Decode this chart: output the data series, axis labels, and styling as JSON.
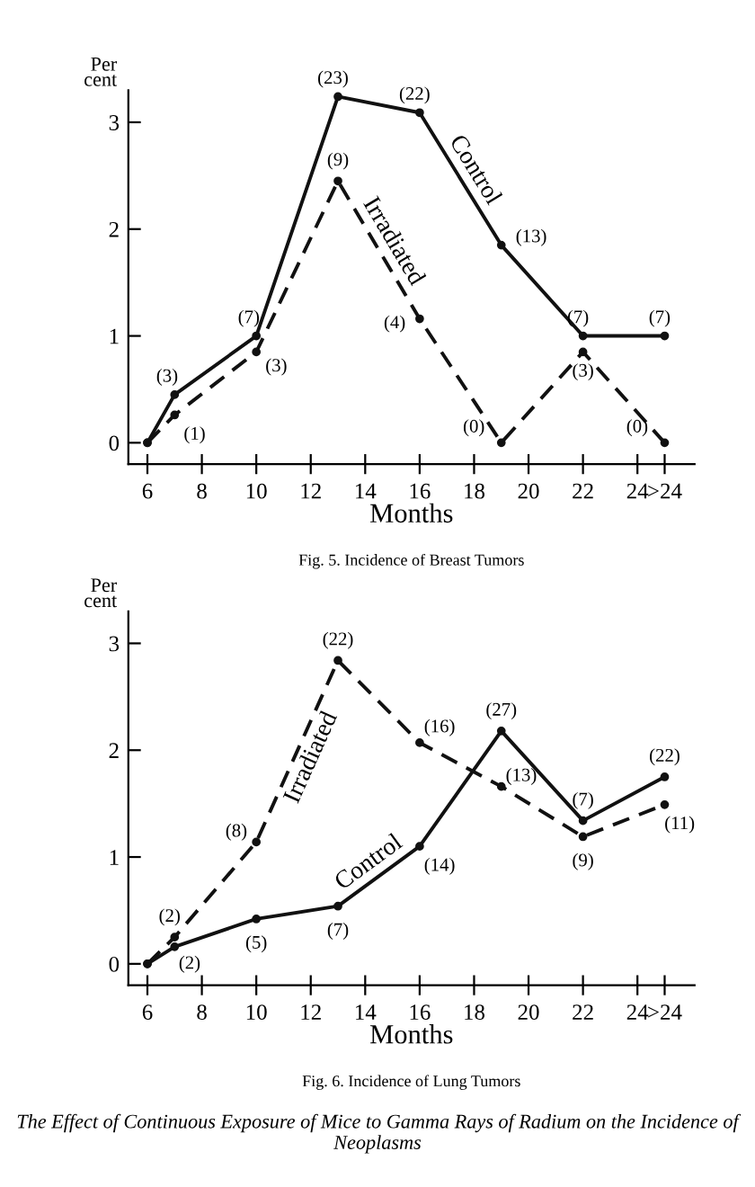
{
  "chart_data": [
    {
      "type": "line",
      "title": "Fig. 5. Incidence of Breast Tumors",
      "xlabel": "Months",
      "ylabel": "Per cent",
      "xlim": [
        5.3,
        26.1
      ],
      "ylim": [
        -0.2,
        3.3
      ],
      "xticks": [
        6,
        8,
        10,
        12,
        14,
        16,
        18,
        20,
        22,
        24,
        {
          "value": 25,
          "label": ">24"
        }
      ],
      "yticks": [
        0,
        1,
        2,
        3
      ],
      "grid": false,
      "legend": false,
      "marker": "circle",
      "x": [
        6,
        7,
        10,
        13,
        16,
        19,
        22,
        25
      ],
      "series": [
        {
          "name": "Control",
          "color": "#111111",
          "line_style": "solid",
          "values": [
            0,
            0.45,
            1.0,
            3.24,
            3.09,
            1.85,
            1.0,
            1.0
          ]
        },
        {
          "name": "Irradiated",
          "color": "#111111",
          "line_style": "dashed",
          "values": [
            0,
            0.26,
            0.85,
            2.45,
            1.16,
            0,
            0.85,
            0
          ]
        }
      ],
      "annotations": [
        {
          "text": "(3)",
          "x": 7,
          "y": 0.45
        },
        {
          "text": "(7)",
          "x": 10,
          "y": 1.0
        },
        {
          "text": "(23)",
          "x": 13,
          "y": 3.24
        },
        {
          "text": "(22)",
          "x": 16,
          "y": 3.09
        },
        {
          "text": "(13)",
          "x": 19,
          "y": 1.85
        },
        {
          "text": "(7)",
          "x": 22,
          "y": 1.0
        },
        {
          "text": "(7)",
          "x": 25,
          "y": 1.0
        },
        {
          "text": "(1)",
          "x": 7,
          "y": 0.26
        },
        {
          "text": "(3)",
          "x": 10,
          "y": 0.85
        },
        {
          "text": "(9)",
          "x": 13,
          "y": 2.45
        },
        {
          "text": "(4)",
          "x": 16,
          "y": 1.16
        },
        {
          "text": "(0)",
          "x": 19,
          "y": 0
        },
        {
          "text": "(3)",
          "x": 22,
          "y": 0.85
        },
        {
          "text": "(0)",
          "x": 25,
          "y": 0
        }
      ]
    },
    {
      "type": "line",
      "title": "Fig. 6. Incidence of Lung Tumors",
      "xlabel": "Months",
      "ylabel": "Per cent",
      "xlim": [
        5.3,
        26.1
      ],
      "ylim": [
        -0.2,
        3.3
      ],
      "xticks": [
        6,
        8,
        10,
        12,
        14,
        16,
        18,
        20,
        22,
        24,
        {
          "value": 25,
          "label": ">24"
        }
      ],
      "yticks": [
        0,
        1,
        2,
        3
      ],
      "grid": false,
      "legend": false,
      "marker": "circle",
      "x": [
        6,
        7,
        10,
        13,
        16,
        19,
        22,
        25
      ],
      "series": [
        {
          "name": "Control",
          "color": "#111111",
          "line_style": "solid",
          "values": [
            0,
            0.16,
            0.42,
            0.54,
            1.1,
            2.18,
            1.34,
            1.75
          ]
        },
        {
          "name": "Irradiated",
          "color": "#111111",
          "line_style": "dashed",
          "values": [
            0,
            0.25,
            1.14,
            2.84,
            2.07,
            1.66,
            1.19,
            1.49
          ]
        }
      ],
      "annotations": [
        {
          "text": "(2)",
          "x": 7,
          "y": 0.16
        },
        {
          "text": "(5)",
          "x": 10,
          "y": 0.42
        },
        {
          "text": "(7)",
          "x": 13,
          "y": 0.54
        },
        {
          "text": "(14)",
          "x": 16,
          "y": 1.1
        },
        {
          "text": "(27)",
          "x": 19,
          "y": 2.18
        },
        {
          "text": "(7)",
          "x": 22,
          "y": 1.34
        },
        {
          "text": "(22)",
          "x": 25,
          "y": 1.75
        },
        {
          "text": "(2)",
          "x": 7,
          "y": 0.25
        },
        {
          "text": "(8)",
          "x": 10,
          "y": 1.14
        },
        {
          "text": "(22)",
          "x": 13,
          "y": 2.84
        },
        {
          "text": "(16)",
          "x": 16,
          "y": 2.07
        },
        {
          "text": "(13)",
          "x": 19,
          "y": 1.66
        },
        {
          "text": "(9)",
          "x": 22,
          "y": 1.19
        },
        {
          "text": "(11)",
          "x": 25,
          "y": 1.49
        },
        "The Effect of Continuous Exposure of Mice to Gamma Rays of Radium on the Incidence of Neoplasms"
      ]
    }
  ]
}
